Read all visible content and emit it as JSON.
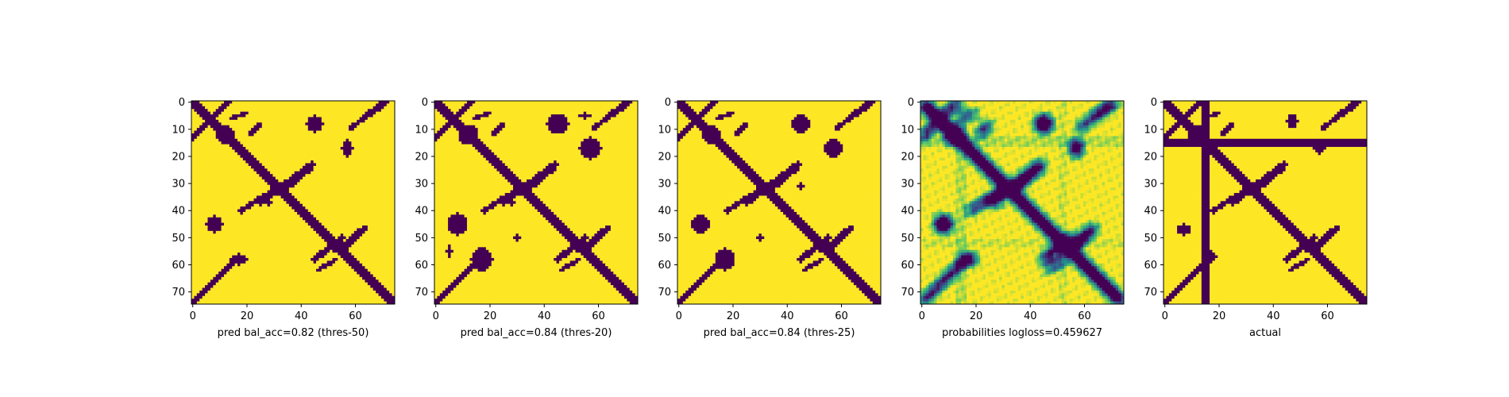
{
  "colors": {
    "low": "#440154",
    "high": "#fde725",
    "viridis": [
      "#440154",
      "#3b528b",
      "#21918c",
      "#5ec962",
      "#fde725"
    ]
  },
  "chart_data": [
    {
      "type": "heatmap",
      "label": "pred bal_acc=0.82 (thres-50)",
      "xlim": [
        0,
        74
      ],
      "ylim": [
        0,
        74
      ],
      "xticks": [
        0,
        20,
        40,
        60
      ],
      "yticks": [
        0,
        10,
        20,
        30,
        40,
        50,
        60,
        70
      ],
      "variant": "pred50"
    },
    {
      "type": "heatmap",
      "label": "pred bal_acc=0.84 (thres-20)",
      "xlim": [
        0,
        74
      ],
      "ylim": [
        0,
        74
      ],
      "xticks": [
        0,
        20,
        40,
        60
      ],
      "yticks": [
        0,
        10,
        20,
        30,
        40,
        50,
        60,
        70
      ],
      "variant": "pred20"
    },
    {
      "type": "heatmap",
      "label": "pred bal_acc=0.84 (thres-25)",
      "xlim": [
        0,
        74
      ],
      "ylim": [
        0,
        74
      ],
      "xticks": [
        0,
        20,
        40,
        60
      ],
      "yticks": [
        0,
        10,
        20,
        30,
        40,
        50,
        60,
        70
      ],
      "variant": "pred25"
    },
    {
      "type": "heatmap",
      "label": "probabilities logloss=0.459627",
      "xlim": [
        0,
        74
      ],
      "ylim": [
        0,
        74
      ],
      "xticks": [
        0,
        20,
        40,
        60
      ],
      "yticks": [
        0,
        10,
        20,
        30,
        40,
        50,
        60,
        70
      ],
      "variant": "prob"
    },
    {
      "type": "heatmap",
      "label": "actual",
      "xlim": [
        0,
        74
      ],
      "ylim": [
        0,
        74
      ],
      "xticks": [
        0,
        20,
        40,
        60
      ],
      "yticks": [
        0,
        10,
        20,
        30,
        40,
        50,
        60,
        70
      ],
      "variant": "actual"
    }
  ]
}
